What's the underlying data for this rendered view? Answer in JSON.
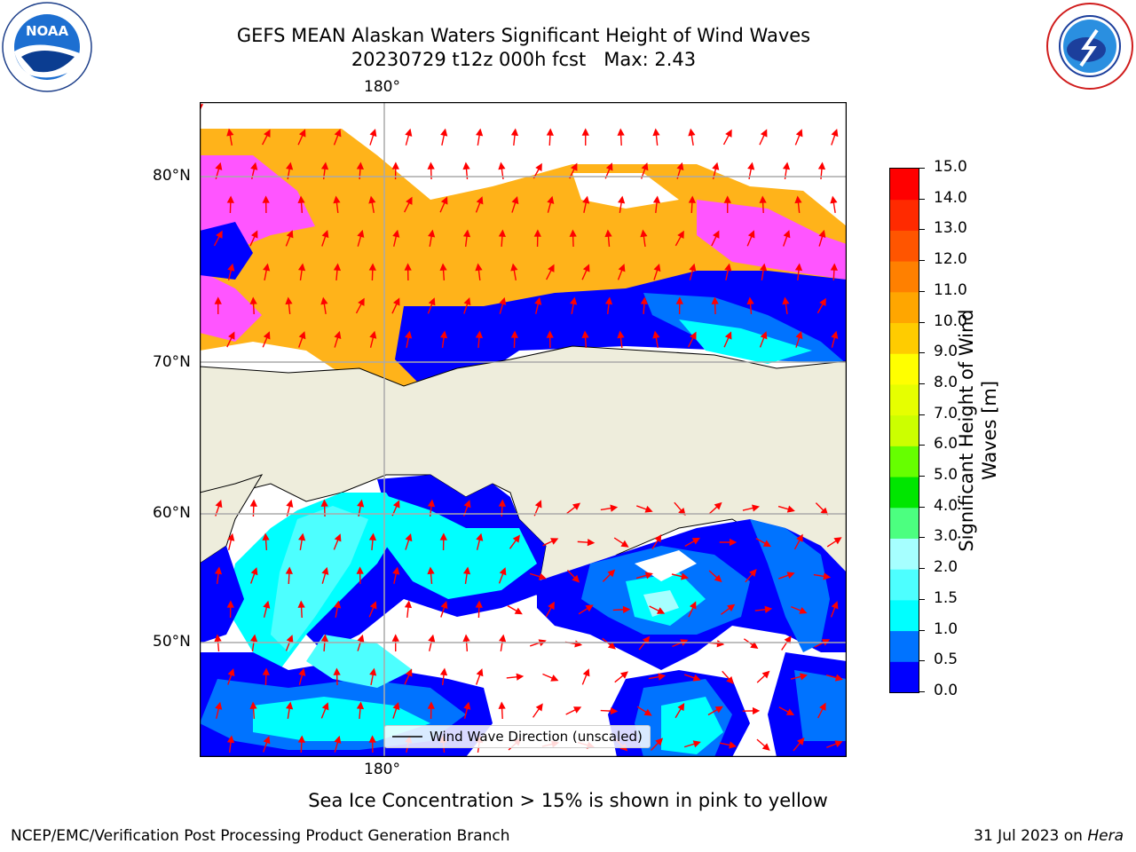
{
  "header": {
    "title_line1": "GEFS MEAN Alaskan Waters Significant Height of Wind Waves",
    "title_line2": "20230729 t12z 000h fcst   Max: 2.43"
  },
  "logos": {
    "left": "NOAA",
    "left_ring": "NATIONAL OCEANIC AND ATMOSPHERIC ADMINISTRATION · U.S. DEPARTMENT OF COMMERCE",
    "right_ring": "NATIONAL WEATHER SERVICE"
  },
  "map": {
    "lon_label_top": "180°",
    "lon_label_bottom": "180°",
    "lat_labels": [
      "80°N",
      "70°N",
      "60°N",
      "50°N"
    ],
    "legend_label": "Wind Wave Direction (unscaled)",
    "colors": {
      "land": "#eeeddc",
      "ocean_low": "#0000ff",
      "ocean_mid": "#00ffff",
      "ice_pink": "#ff55ff",
      "ice_yellow": "#ffb31a",
      "arrow": "#ff0000",
      "grid": "#aaaaaa"
    }
  },
  "colorbar": {
    "label_line1": "Significant Height of Wind",
    "label_line2": "Waves [m]",
    "ticks": [
      "0.0",
      "0.5",
      "1.0",
      "1.5",
      "2.0",
      "3.0",
      "4.0",
      "5.0",
      "6.0",
      "7.0",
      "8.0",
      "9.0",
      "10.0",
      "11.0",
      "12.0",
      "13.0",
      "14.0",
      "15.0"
    ],
    "colors": [
      "#0000ff",
      "#0073ff",
      "#00ffff",
      "#4dffff",
      "#a6ffff",
      "#4cff80",
      "#00e600",
      "#66ff00",
      "#ccff00",
      "#e6ff00",
      "#ffff00",
      "#ffcc00",
      "#ffa600",
      "#ff8000",
      "#ff5500",
      "#ff2a00",
      "#ff0000"
    ]
  },
  "caption": "Sea Ice Concentration > 15% is shown in pink to yellow",
  "footer": {
    "left": "NCEP/EMC/Verification Post Processing Product Generation Branch",
    "date": "31 Jul 2023 on",
    "machine": "Hera"
  }
}
